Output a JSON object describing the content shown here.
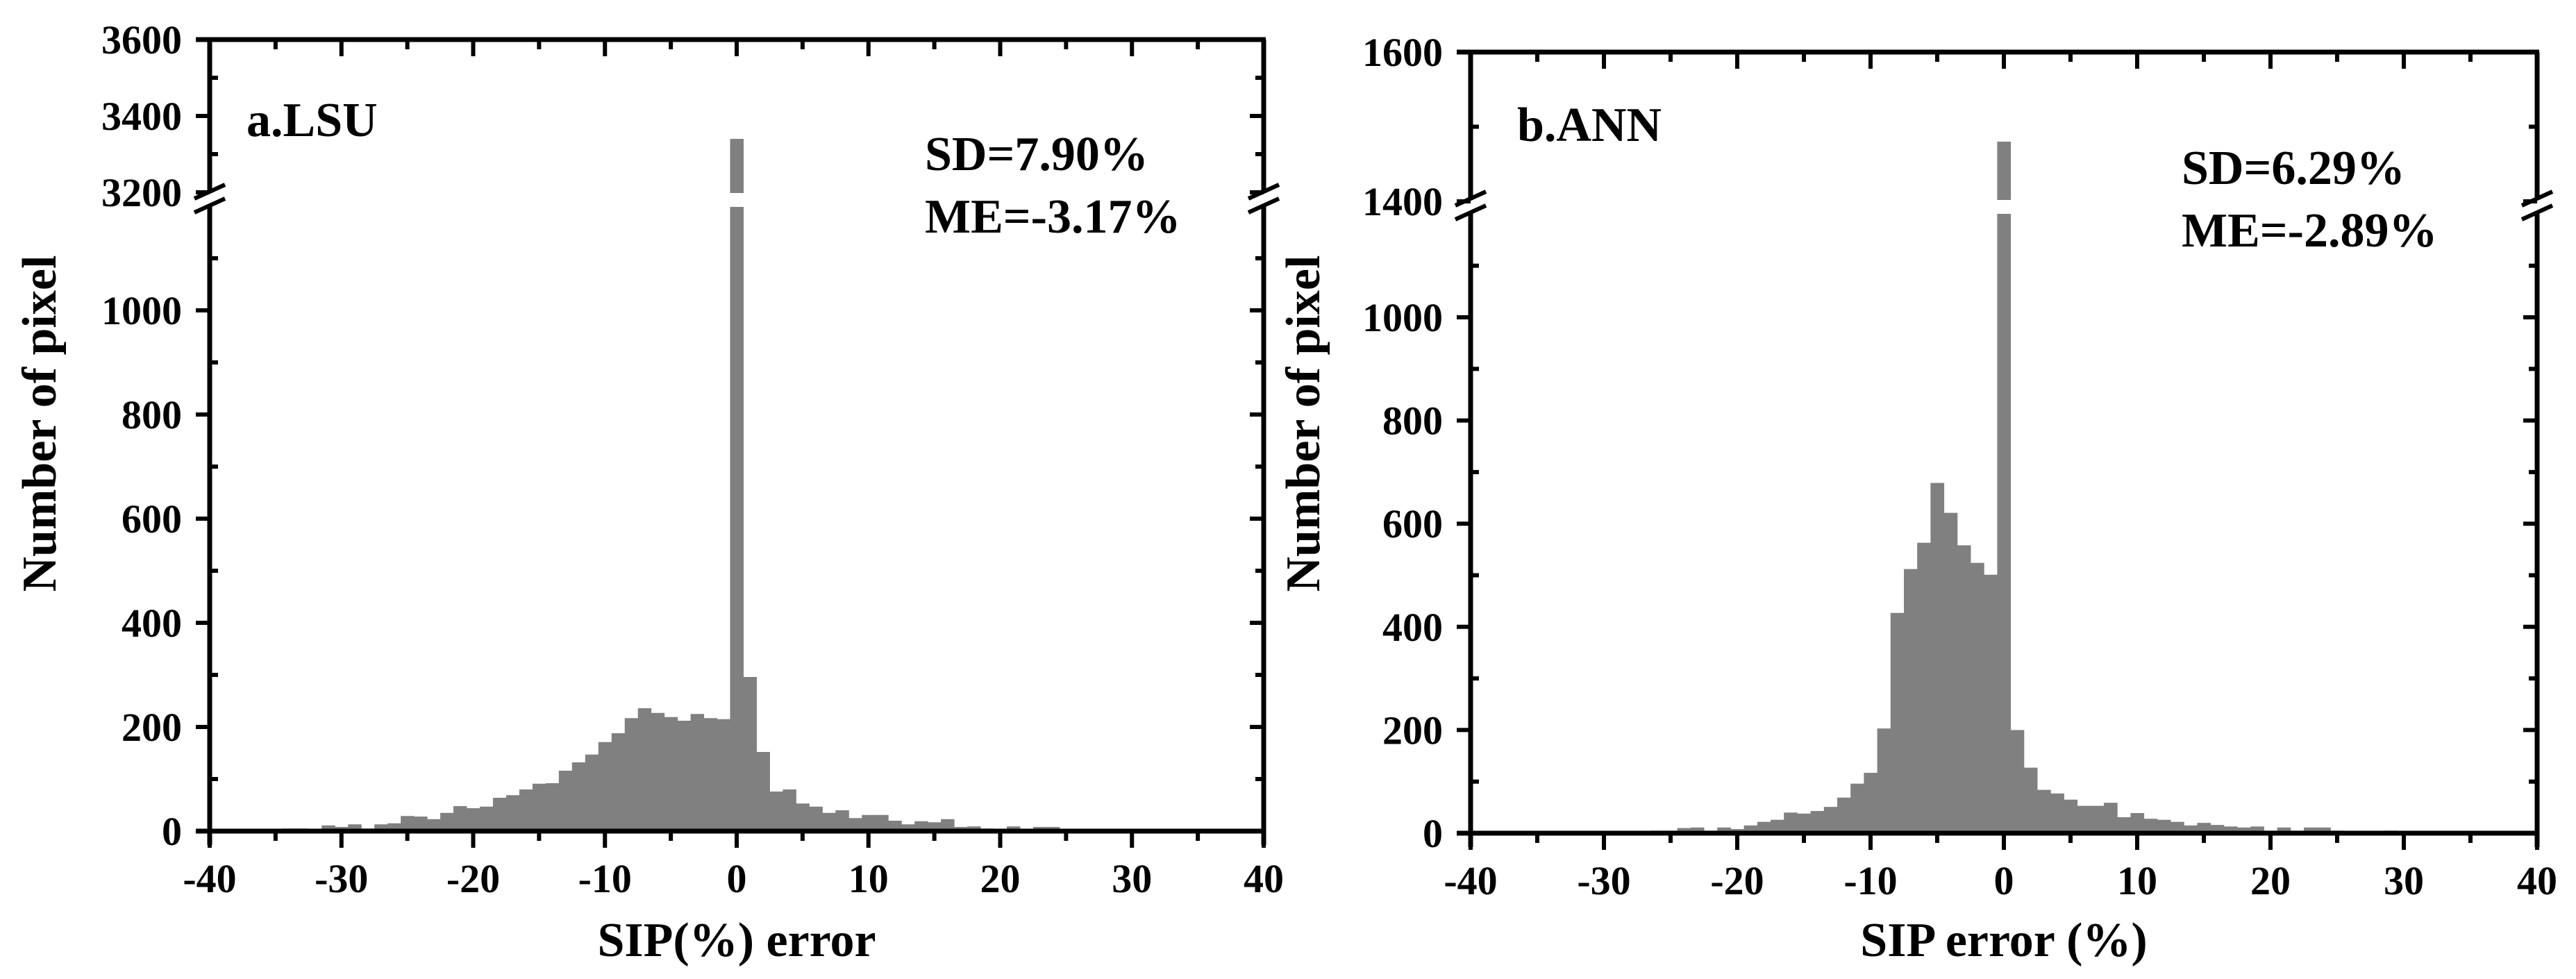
{
  "chart_data": [
    {
      "type": "bar",
      "panel_label": "a.LSU",
      "annotations": {
        "sd": "SD=7.90%",
        "me": "ME=-3.17%"
      },
      "xlabel": "SIP(%) error",
      "ylabel": "Number of pixel",
      "xlim": [
        -40,
        40
      ],
      "xticks": [
        -40,
        -30,
        -20,
        -10,
        0,
        10,
        20,
        30,
        40
      ],
      "y_axis_break": {
        "lower": [
          0,
          1180
        ],
        "upper": [
          3200,
          3600
        ]
      },
      "yticks_lower": [
        0,
        200,
        400,
        600,
        800,
        1000
      ],
      "yticks_upper": [
        3200,
        3400,
        3600
      ],
      "bin_width": 1,
      "bar_color": "#808080",
      "x": [
        -40,
        -39,
        -38,
        -37,
        -36,
        -35,
        -34,
        -33,
        -32,
        -31,
        -30,
        -29,
        -28,
        -27,
        -26,
        -25,
        -24,
        -23,
        -22,
        -21,
        -20,
        -19,
        -18,
        -17,
        -16,
        -15,
        -14,
        -13,
        -12,
        -11,
        -10,
        -9,
        -8,
        -7,
        -6,
        -5,
        -4,
        -3,
        -2,
        -1,
        0,
        1,
        2,
        3,
        4,
        5,
        6,
        7,
        8,
        9,
        10,
        11,
        12,
        13,
        14,
        15,
        16,
        17,
        18,
        19,
        20,
        21,
        22,
        23,
        24,
        25,
        26,
        27,
        28,
        29,
        30,
        31,
        32,
        33,
        34,
        35,
        36,
        37,
        38,
        39
      ],
      "values": [
        2,
        0,
        3,
        0,
        1,
        0,
        5,
        5,
        0,
        11,
        8,
        13,
        5,
        13,
        15,
        29,
        28,
        23,
        35,
        48,
        44,
        47,
        64,
        69,
        80,
        91,
        92,
        116,
        132,
        147,
        171,
        188,
        217,
        236,
        227,
        219,
        212,
        225,
        217,
        215,
        3340,
        296,
        152,
        76,
        80,
        53,
        47,
        35,
        40,
        25,
        31,
        31,
        20,
        13,
        19,
        17,
        23,
        8,
        9,
        5,
        1,
        9,
        4,
        8,
        8,
        4,
        1,
        1,
        1,
        1,
        2,
        3,
        0,
        0,
        0,
        1,
        0,
        0,
        0,
        0
      ]
    },
    {
      "type": "bar",
      "panel_label": "b.ANN",
      "annotations": {
        "sd": "SD=6.29%",
        "me": "ME=-2.89%"
      },
      "xlabel": "SIP error (%)",
      "ylabel": "Number of pixel",
      "xlim": [
        -40,
        40
      ],
      "xticks": [
        -40,
        -30,
        -20,
        -10,
        0,
        10,
        20,
        30,
        40
      ],
      "y_axis_break": {
        "lower": [
          0,
          1390
        ],
        "upper": [
          1400,
          1600
        ]
      },
      "yticks_lower": [
        0,
        200,
        400,
        600,
        800,
        1000
      ],
      "yticks_upper": [
        1400,
        1600
      ],
      "bin_width": 1,
      "bar_color": "#808080",
      "x": [
        -40,
        -39,
        -38,
        -37,
        -36,
        -35,
        -34,
        -33,
        -32,
        -31,
        -30,
        -29,
        -28,
        -27,
        -26,
        -25,
        -24,
        -23,
        -22,
        -21,
        -20,
        -19,
        -18,
        -17,
        -16,
        -15,
        -14,
        -13,
        -12,
        -11,
        -10,
        -9,
        -8,
        -7,
        -6,
        -5,
        -4,
        -3,
        -2,
        -1,
        0,
        1,
        2,
        3,
        4,
        5,
        6,
        7,
        8,
        9,
        10,
        11,
        12,
        13,
        14,
        15,
        16,
        17,
        18,
        19,
        20,
        21,
        22,
        23,
        24,
        25,
        26,
        27,
        28,
        29,
        30,
        31,
        32,
        33,
        34,
        35,
        36,
        37,
        38,
        39
      ],
      "values": [
        0,
        0,
        1,
        0,
        0,
        0,
        0,
        0,
        0,
        0,
        1,
        0,
        3,
        3,
        5,
        5,
        10,
        11,
        5,
        11,
        8,
        15,
        22,
        26,
        40,
        38,
        43,
        51,
        69,
        96,
        117,
        203,
        427,
        512,
        563,
        679,
        621,
        558,
        524,
        501,
        1480,
        200,
        127,
        84,
        77,
        65,
        53,
        53,
        59,
        31,
        39,
        28,
        26,
        22,
        15,
        20,
        16,
        13,
        11,
        13,
        5,
        11,
        5,
        11,
        11,
        5,
        3,
        3,
        3,
        5,
        3,
        1,
        1,
        0,
        1,
        0,
        0,
        0,
        0,
        0
      ]
    }
  ],
  "panels": [
    {
      "label": "a.LSU",
      "sd": "SD=7.90%",
      "me": "ME=-3.17%",
      "xlabel": "SIP(%) error",
      "ylabel": "Number of pixel",
      "xtick_labels": [
        "-40",
        "-30",
        "-20",
        "-10",
        "0",
        "10",
        "20",
        "30",
        "40"
      ],
      "ytick_labels_lower": [
        "0",
        "200",
        "400",
        "600",
        "800",
        "1000"
      ],
      "ytick_labels_upper": [
        "3200",
        "3400",
        "3600"
      ]
    },
    {
      "label": "b.ANN",
      "sd": "SD=6.29%",
      "me": "ME=-2.89%",
      "xlabel": "SIP error (%)",
      "ylabel": "Number of pixel",
      "xtick_labels": [
        "-40",
        "-30",
        "-20",
        "-10",
        "0",
        "10",
        "20",
        "30",
        "40"
      ],
      "ytick_labels_lower": [
        "0",
        "200",
        "400",
        "600",
        "800",
        "1000"
      ],
      "ytick_labels_upper": [
        "1400",
        "1600"
      ]
    }
  ]
}
